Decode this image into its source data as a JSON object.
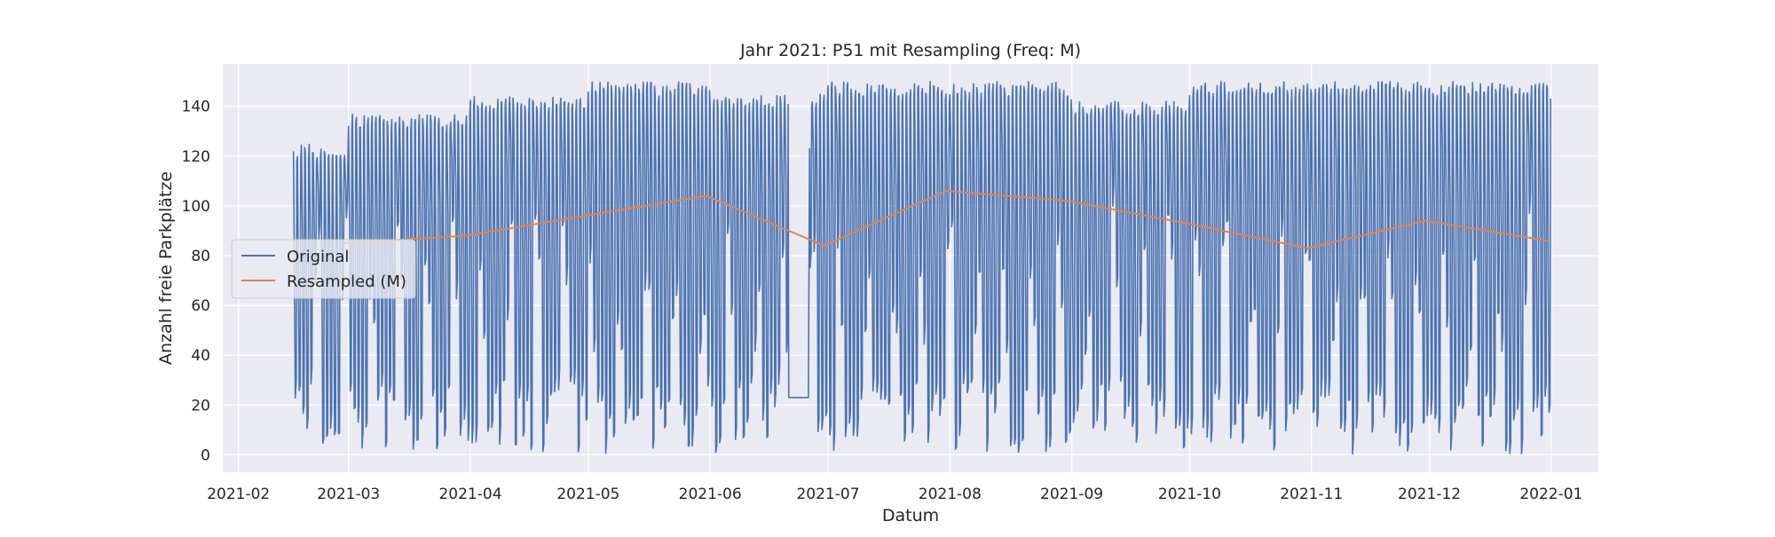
{
  "chart_data": {
    "type": "line",
    "title": "Jahr 2021: P51 mit Resampling (Freq: M)",
    "xlabel": "Datum",
    "ylabel": "Anzahl freie Parkplätze",
    "xlim": [
      "2021-01-28",
      "2022-01-13"
    ],
    "ylim": [
      -7,
      157
    ],
    "x_ticks": [
      "2021-02",
      "2021-03",
      "2021-04",
      "2021-05",
      "2021-06",
      "2021-07",
      "2021-08",
      "2021-09",
      "2021-10",
      "2021-11",
      "2021-12",
      "2022-01"
    ],
    "y_ticks": [
      0,
      20,
      40,
      60,
      80,
      100,
      120,
      140
    ],
    "grid": true,
    "legend_position": "center-left",
    "background": "#eaeaf2",
    "series": [
      {
        "name": "Original",
        "color": "#4c72b0",
        "x_range": [
          "2021-02-15",
          "2021-12-31"
        ],
        "daily_pattern": "hourly occupancy oscillating between night maximum (~120-150) and daytime minimum (~0-40)",
        "monthly_max": [
          {
            "month": "2021-02",
            "max": 125
          },
          {
            "month": "2021-03",
            "max": 137
          },
          {
            "month": "2021-04",
            "max": 144
          },
          {
            "month": "2021-05",
            "max": 150
          },
          {
            "month": "2021-06",
            "max": 145
          },
          {
            "month": "2021-07",
            "max": 150
          },
          {
            "month": "2021-08",
            "max": 150
          },
          {
            "month": "2021-09",
            "max": 142
          },
          {
            "month": "2021-10",
            "max": 150
          },
          {
            "month": "2021-11",
            "max": 150
          },
          {
            "month": "2021-12",
            "max": 150
          }
        ]
      },
      {
        "name": "Resampled (M)",
        "color": "#dd8452",
        "x": [
          "2021-02-28",
          "2021-03-31",
          "2021-04-30",
          "2021-05-31",
          "2021-06-30",
          "2021-07-31",
          "2021-08-31",
          "2021-09-30",
          "2021-10-31",
          "2021-11-30",
          "2021-12-31"
        ],
        "values": [
          85,
          88,
          96,
          104,
          84,
          106,
          102,
          93,
          83,
          94,
          86
        ]
      }
    ]
  }
}
